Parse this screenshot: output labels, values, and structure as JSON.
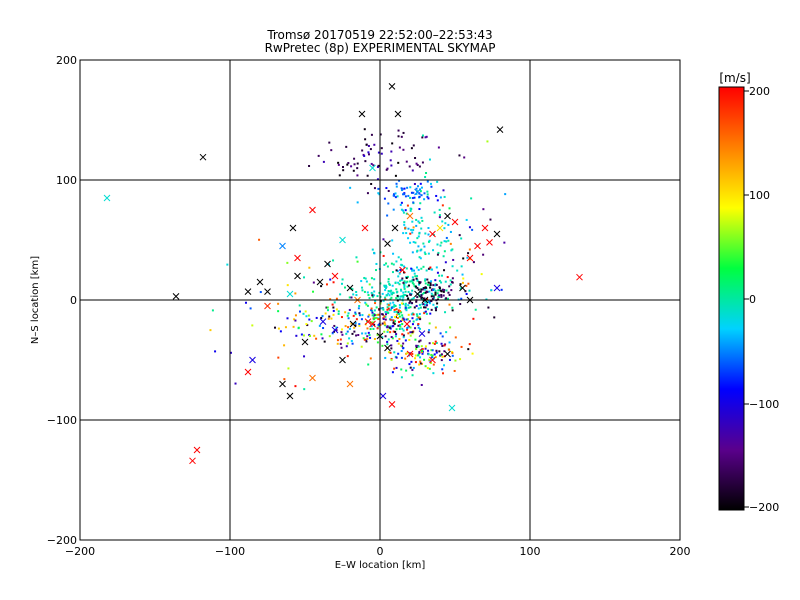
{
  "chart_data": {
    "type": "scatter",
    "title": "Tromsø 20170519 22:52:00–22:53:43",
    "subtitle": "RwPretec (8p) EXPERIMENTAL SKYMAP",
    "xlabel": "E–W location [km]",
    "ylabel": "N–S location [km]",
    "xlim": [
      -200,
      200
    ],
    "ylim": [
      -200,
      200
    ],
    "x_ticks": [
      "−200",
      "−100",
      "0",
      "100",
      "200"
    ],
    "y_ticks": [
      "−200",
      "−100",
      "0",
      "100",
      "200"
    ],
    "grid": true,
    "colorbar": {
      "label": "[m/s]",
      "range": [
        -200,
        200
      ],
      "ticks": [
        "200",
        "100",
        "0",
        "−100",
        "−200"
      ],
      "colormap": [
        "#000000",
        "#5a008c",
        "#0000ff",
        "#00d2ff",
        "#00ff40",
        "#ffff00",
        "#ff8000",
        "#ff0000"
      ]
    },
    "crosses": [
      {
        "x": -182,
        "y": 85,
        "v": -15
      },
      {
        "x": -136,
        "y": 3,
        "v": -200
      },
      {
        "x": -122,
        "y": -125,
        "v": 200
      },
      {
        "x": -125,
        "y": -134,
        "v": 200
      },
      {
        "x": -118,
        "y": 119,
        "v": -200
      },
      {
        "x": -88,
        "y": 7,
        "v": -200
      },
      {
        "x": -88,
        "y": -60,
        "v": 200
      },
      {
        "x": -85,
        "y": -50,
        "v": -100
      },
      {
        "x": -80,
        "y": 15,
        "v": -200
      },
      {
        "x": -75,
        "y": 7,
        "v": -200
      },
      {
        "x": -75,
        "y": -5,
        "v": 180
      },
      {
        "x": -65,
        "y": -70,
        "v": -200
      },
      {
        "x": -60,
        "y": -80,
        "v": -200
      },
      {
        "x": -58,
        "y": 60,
        "v": -200
      },
      {
        "x": -60,
        "y": 5,
        "v": -15
      },
      {
        "x": -55,
        "y": 20,
        "v": -200
      },
      {
        "x": -50,
        "y": -35,
        "v": -200
      },
      {
        "x": -45,
        "y": -65,
        "v": 150
      },
      {
        "x": -45,
        "y": 75,
        "v": 200
      },
      {
        "x": -40,
        "y": 15,
        "v": -200
      },
      {
        "x": -35,
        "y": 30,
        "v": -200
      },
      {
        "x": -30,
        "y": -25,
        "v": -100
      },
      {
        "x": -30,
        "y": 20,
        "v": 200
      },
      {
        "x": -25,
        "y": -50,
        "v": -200
      },
      {
        "x": -25,
        "y": 50,
        "v": -15
      },
      {
        "x": -20,
        "y": -70,
        "v": 150
      },
      {
        "x": -20,
        "y": 10,
        "v": -200
      },
      {
        "x": -18,
        "y": -20,
        "v": -200
      },
      {
        "x": -15,
        "y": 0,
        "v": 150
      },
      {
        "x": -10,
        "y": 60,
        "v": 200
      },
      {
        "x": -5,
        "y": -20,
        "v": 200
      },
      {
        "x": -5,
        "y": 110,
        "v": -15
      },
      {
        "x": 0,
        "y": -30,
        "v": -200
      },
      {
        "x": 5,
        "y": 47,
        "v": -200
      },
      {
        "x": 5,
        "y": -40,
        "v": -200
      },
      {
        "x": 8,
        "y": 178,
        "v": -200
      },
      {
        "x": 8,
        "y": -87,
        "v": 200
      },
      {
        "x": 10,
        "y": 60,
        "v": -200
      },
      {
        "x": 12,
        "y": 155,
        "v": -200
      },
      {
        "x": 15,
        "y": 25,
        "v": 200
      },
      {
        "x": 18,
        "y": -20,
        "v": 200
      },
      {
        "x": 20,
        "y": 70,
        "v": 150
      },
      {
        "x": 20,
        "y": -45,
        "v": 200
      },
      {
        "x": 25,
        "y": 5,
        "v": -200
      },
      {
        "x": 25,
        "y": 90,
        "v": -50
      },
      {
        "x": 30,
        "y": 0,
        "v": -200
      },
      {
        "x": 35,
        "y": -50,
        "v": 200
      },
      {
        "x": 35,
        "y": 55,
        "v": 200
      },
      {
        "x": 40,
        "y": 60,
        "v": 100
      },
      {
        "x": 45,
        "y": -45,
        "v": -200
      },
      {
        "x": 45,
        "y": 70,
        "v": -200
      },
      {
        "x": 48,
        "y": -90,
        "v": -15
      },
      {
        "x": 50,
        "y": 65,
        "v": 200
      },
      {
        "x": 55,
        "y": 10,
        "v": -200
      },
      {
        "x": 60,
        "y": 0,
        "v": -200
      },
      {
        "x": 65,
        "y": 45,
        "v": 200
      },
      {
        "x": 70,
        "y": 60,
        "v": 200
      },
      {
        "x": 73,
        "y": 48,
        "v": 200
      },
      {
        "x": 78,
        "y": 55,
        "v": -200
      },
      {
        "x": 80,
        "y": 142,
        "v": -200
      },
      {
        "x": 78,
        "y": 10,
        "v": -100
      },
      {
        "x": 133,
        "y": 19,
        "v": 200
      },
      {
        "x": -12,
        "y": 155,
        "v": -200
      },
      {
        "x": -65,
        "y": 45,
        "v": -50
      },
      {
        "x": 2,
        "y": -80,
        "v": -100
      },
      {
        "x": 60,
        "y": 35,
        "v": 200
      },
      {
        "x": -8,
        "y": -18,
        "v": 200
      },
      {
        "x": 28,
        "y": -28,
        "v": -100
      },
      {
        "x": -38,
        "y": -18,
        "v": -100
      },
      {
        "x": -55,
        "y": 35,
        "v": 200
      }
    ],
    "clusters": [
      {
        "cx": -2,
        "cy": 118,
        "sx": 22,
        "sy": 12,
        "n": 80,
        "vmin": -200,
        "vmax": -110
      },
      {
        "cx": 12,
        "cy": 5,
        "sx": 18,
        "sy": 12,
        "n": 260,
        "vmin": -30,
        "vmax": 15
      },
      {
        "cx": 25,
        "cy": 55,
        "sx": 14,
        "sy": 26,
        "n": 130,
        "vmin": -40,
        "vmax": 10
      },
      {
        "cx": 8,
        "cy": -20,
        "sx": 14,
        "sy": 10,
        "n": 180,
        "vmin": -200,
        "vmax": 200
      },
      {
        "cx": 30,
        "cy": -45,
        "sx": 14,
        "sy": 8,
        "n": 120,
        "vmin": -200,
        "vmax": 200
      },
      {
        "cx": 32,
        "cy": 5,
        "sx": 10,
        "sy": 8,
        "n": 90,
        "vmin": -200,
        "vmax": -150
      },
      {
        "cx": 20,
        "cy": 88,
        "sx": 12,
        "sy": 6,
        "n": 50,
        "vmin": -90,
        "vmax": -30
      },
      {
        "cx": -25,
        "cy": -20,
        "sx": 18,
        "sy": 12,
        "n": 90,
        "vmin": -200,
        "vmax": 200
      },
      {
        "cx": -55,
        "cy": -10,
        "sx": 22,
        "sy": 25,
        "n": 50,
        "vmin": -200,
        "vmax": 200
      },
      {
        "cx": 45,
        "cy": 30,
        "sx": 20,
        "sy": 30,
        "n": 60,
        "vmin": -200,
        "vmax": 200
      }
    ]
  }
}
